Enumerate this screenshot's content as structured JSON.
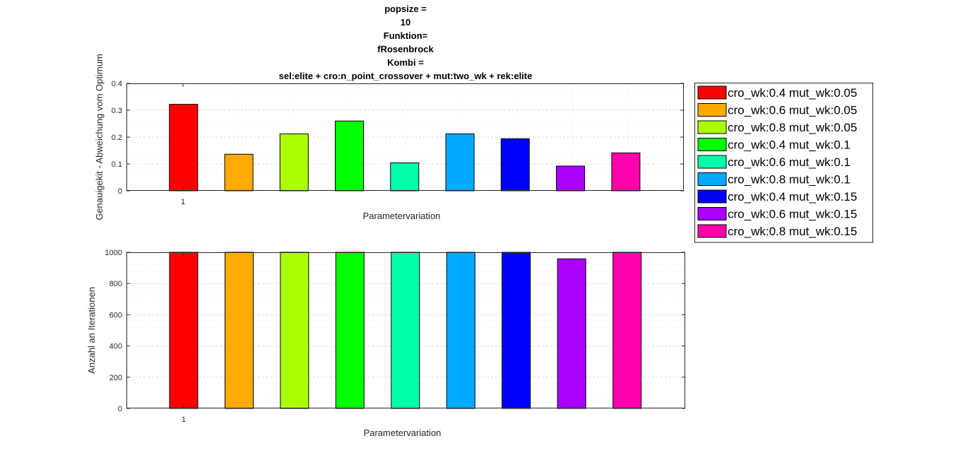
{
  "chart_data": [
    {
      "type": "bar",
      "title_lines": [
        "popsize =",
        "10",
        "Funktion=",
        "fRosenbrock",
        "Kombi =",
        "sel:elite + cro:n_point_crossover +  mut:two_wk +  rek:elite"
      ],
      "xlabel": "Parametervariation",
      "ylabel": "Genauigekit - Abweichung vom Optimum",
      "categories": [
        "1"
      ],
      "ylim": [
        0,
        0.4
      ],
      "yticks": [
        "0",
        "0.1",
        "0.2",
        "0.3",
        "0.4"
      ],
      "grid": true,
      "legend_position": "right",
      "series": [
        {
          "name": "cro_wk:0.4 mut_wk:0.05",
          "color": "#ff0000",
          "values": [
            0.322
          ]
        },
        {
          "name": "cro_wk:0.6 mut_wk:0.05",
          "color": "#ffaa00",
          "values": [
            0.136
          ]
        },
        {
          "name": "cro_wk:0.8 mut_wk:0.05",
          "color": "#aaff00",
          "values": [
            0.212
          ]
        },
        {
          "name": "cro_wk:0.4 mut_wk:0.1",
          "color": "#00ff00",
          "values": [
            0.26
          ]
        },
        {
          "name": "cro_wk:0.6 mut_wk:0.1",
          "color": "#00ffaa",
          "values": [
            0.104
          ]
        },
        {
          "name": "cro_wk:0.8 mut_wk:0.1",
          "color": "#00aaff",
          "values": [
            0.212
          ]
        },
        {
          "name": "cro_wk:0.4 mut_wk:0.15",
          "color": "#0000ff",
          "values": [
            0.194
          ]
        },
        {
          "name": "cro_wk:0.6 mut_wk:0.15",
          "color": "#aa00ff",
          "values": [
            0.092
          ]
        },
        {
          "name": "cro_wk:0.8 mut_wk:0.15",
          "color": "#ff00aa",
          "values": [
            0.141
          ]
        }
      ]
    },
    {
      "type": "bar",
      "xlabel": "Parametervariation",
      "ylabel": "Anzahl an Iterationen",
      "categories": [
        "1"
      ],
      "ylim": [
        0,
        1000
      ],
      "yticks": [
        "0",
        "200",
        "400",
        "600",
        "800",
        "1000"
      ],
      "grid": true,
      "series": [
        {
          "name": "cro_wk:0.4 mut_wk:0.05",
          "color": "#ff0000",
          "values": [
            1000
          ]
        },
        {
          "name": "cro_wk:0.6 mut_wk:0.05",
          "color": "#ffaa00",
          "values": [
            1000
          ]
        },
        {
          "name": "cro_wk:0.8 mut_wk:0.05",
          "color": "#aaff00",
          "values": [
            1000
          ]
        },
        {
          "name": "cro_wk:0.4 mut_wk:0.1",
          "color": "#00ff00",
          "values": [
            1000
          ]
        },
        {
          "name": "cro_wk:0.6 mut_wk:0.1",
          "color": "#00ffaa",
          "values": [
            1000
          ]
        },
        {
          "name": "cro_wk:0.8 mut_wk:0.1",
          "color": "#00aaff",
          "values": [
            1000
          ]
        },
        {
          "name": "cro_wk:0.4 mut_wk:0.15",
          "color": "#0000ff",
          "values": [
            1000
          ]
        },
        {
          "name": "cro_wk:0.6 mut_wk:0.15",
          "color": "#aa00ff",
          "values": [
            958
          ]
        },
        {
          "name": "cro_wk:0.8 mut_wk:0.15",
          "color": "#ff00aa",
          "values": [
            1000
          ]
        }
      ]
    }
  ]
}
